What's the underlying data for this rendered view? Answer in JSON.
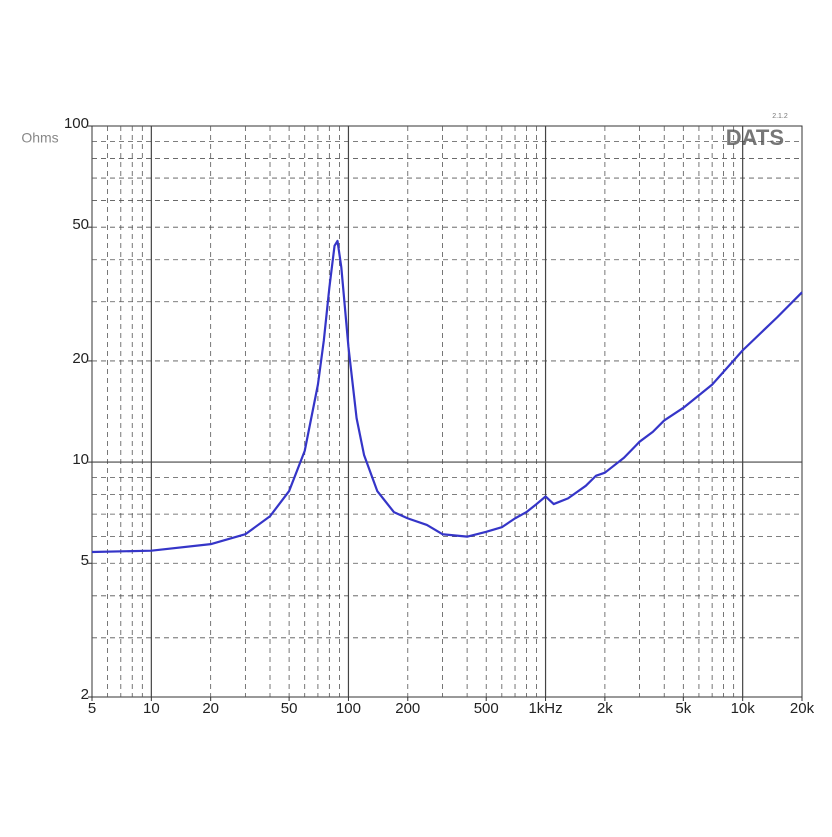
{
  "chart_data": {
    "type": "line",
    "ylabel": "Ohms",
    "watermark": "DATS",
    "version": "2.1.2",
    "xscale": "log",
    "yscale": "log",
    "xlim": [
      5,
      20000
    ],
    "ylim": [
      2,
      100
    ],
    "xticks": [
      5,
      10,
      20,
      50,
      100,
      200,
      500,
      {
        "value": 1000,
        "label": "1kHz"
      },
      {
        "value": 2000,
        "label": "2k"
      },
      {
        "value": 5000,
        "label": "5k"
      },
      {
        "value": 10000,
        "label": "10k"
      },
      {
        "value": 20000,
        "label": "20k"
      }
    ],
    "yticks": [
      2,
      5,
      10,
      20,
      50,
      100
    ],
    "xmajorgrid": [
      10,
      100,
      1000,
      10000
    ],
    "ymajorgrid": [
      10
    ],
    "xminorgrid": [
      6,
      7,
      8,
      9,
      20,
      30,
      40,
      50,
      60,
      70,
      80,
      90,
      200,
      300,
      400,
      500,
      600,
      700,
      800,
      900,
      2000,
      3000,
      4000,
      5000,
      6000,
      7000,
      8000,
      9000
    ],
    "yminorgrid": [
      3,
      4,
      5,
      6,
      7,
      8,
      9,
      20,
      30,
      40,
      50,
      60,
      70,
      80,
      90
    ],
    "grid": true,
    "color": "#3535c8",
    "x": [
      5,
      10,
      20,
      30,
      40,
      50,
      60,
      70,
      75,
      80,
      85,
      88,
      92,
      100,
      110,
      120,
      140,
      170,
      200,
      250,
      300,
      400,
      500,
      600,
      700,
      800,
      900,
      1000,
      1100,
      1300,
      1600,
      1800,
      2000,
      2500,
      3000,
      3500,
      4000,
      5000,
      7000,
      10000,
      15000,
      20000
    ],
    "values": [
      5.4,
      5.45,
      5.7,
      6.1,
      6.9,
      8.2,
      10.8,
      17,
      23,
      33,
      44,
      45.5,
      38,
      22,
      13.5,
      10.5,
      8.2,
      7.1,
      6.8,
      6.5,
      6.1,
      6.0,
      6.2,
      6.4,
      6.8,
      7.1,
      7.5,
      7.9,
      7.5,
      7.8,
      8.5,
      9.1,
      9.3,
      10.3,
      11.5,
      12.3,
      13.3,
      14.5,
      17,
      21.5,
      27,
      32
    ]
  }
}
